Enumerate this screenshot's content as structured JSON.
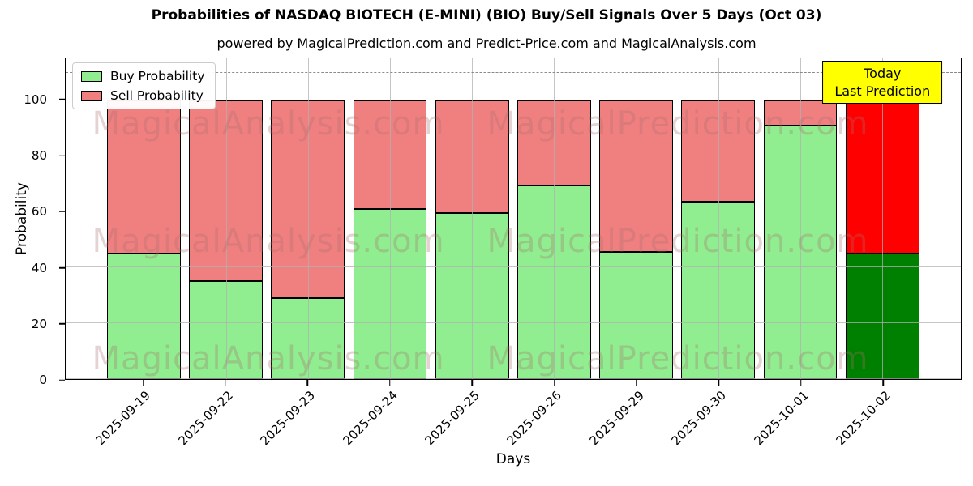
{
  "chart_data": {
    "type": "bar",
    "stacked": true,
    "title": "Probabilities of NASDAQ BIOTECH (E-MINI) (BIO) Buy/Sell Signals Over 5 Days (Oct 03)",
    "subtitle": "powered by MagicalPrediction.com and Predict-Price.com and MagicalAnalysis.com",
    "xlabel": "Days",
    "ylabel": "Probability",
    "ylim": [
      0,
      115
    ],
    "yticks": [
      0,
      20,
      40,
      60,
      80,
      100
    ],
    "grid": true,
    "dashed_guideline_y": 110,
    "categories": [
      "2025-09-19",
      "2025-09-22",
      "2025-09-23",
      "2025-09-24",
      "2025-09-25",
      "2025-09-26",
      "2025-09-29",
      "2025-09-30",
      "2025-10-01",
      "2025-10-02"
    ],
    "series": [
      {
        "name": "Buy Probability",
        "color": "#90EE90",
        "last_bar_color": "#008000",
        "values": [
          45,
          35,
          29,
          61,
          59.5,
          69.5,
          45.5,
          63.5,
          91,
          45
        ]
      },
      {
        "name": "Sell Probability",
        "color": "#F08080",
        "last_bar_color": "#FF0000",
        "values": [
          55,
          65,
          71,
          39,
          40.5,
          30.5,
          54.5,
          36.5,
          9,
          55
        ]
      }
    ],
    "legend": {
      "position": "upper left",
      "entries": [
        "Buy Probability",
        "Sell Probability"
      ]
    },
    "annotation": {
      "lines": [
        "Today",
        "Last Prediction"
      ],
      "bg_color": "#FFFF00",
      "attached_to": "2025-10-02"
    },
    "watermarks": {
      "left_text": "MagicalAnalysis.com",
      "right_text": "MagicalPrediction.com",
      "rows": 3
    },
    "edge_color": "#000000",
    "legend_swatch_buy_color": "#90EE90",
    "legend_swatch_sell_color": "#F08080"
  }
}
